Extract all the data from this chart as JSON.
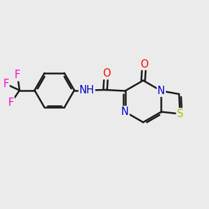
{
  "background_color": "#ebebeb",
  "bond_color": "#1a1a1a",
  "line_width": 1.8,
  "atom_colors": {
    "O": "#ff0000",
    "N": "#0000cc",
    "S": "#b8b800",
    "F": "#ff00cc",
    "C": "#1a1a1a"
  },
  "fs": 10.5
}
